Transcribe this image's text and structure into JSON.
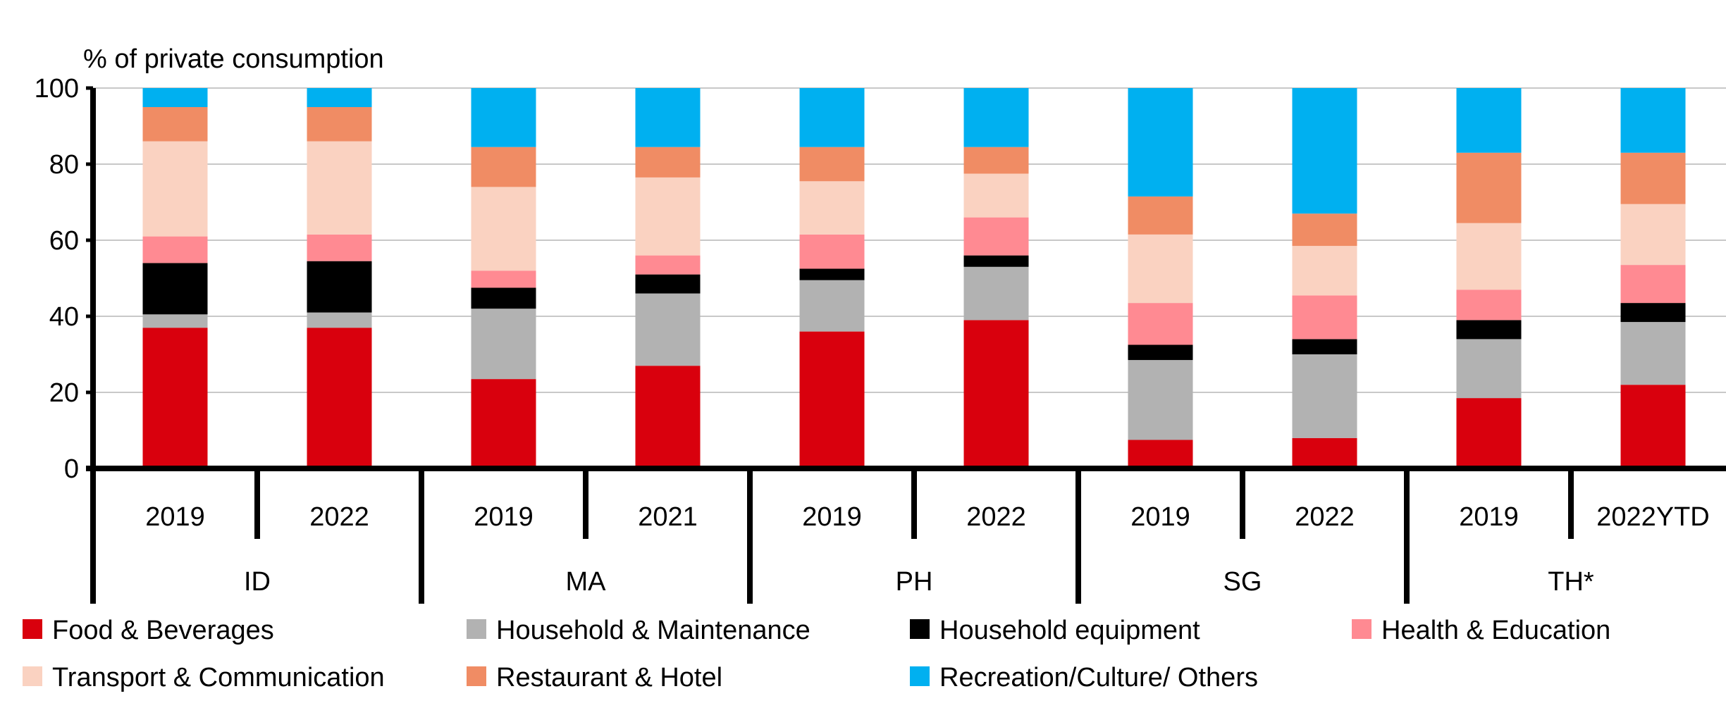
{
  "chart_data": {
    "type": "stacked-bar",
    "ylabel": "% of private consumption",
    "ylim": [
      0,
      100
    ],
    "yticks": [
      0,
      20,
      40,
      60,
      80,
      100
    ],
    "grid": true,
    "legend_position": "bottom",
    "groups": [
      {
        "name": "ID",
        "categories": [
          "2019",
          "2022"
        ]
      },
      {
        "name": "MA",
        "categories": [
          "2019",
          "2021"
        ]
      },
      {
        "name": "PH",
        "categories": [
          "2019",
          "2022"
        ]
      },
      {
        "name": "SG",
        "categories": [
          "2019",
          "2022"
        ]
      },
      {
        "name": "TH*",
        "categories": [
          "2019",
          "2022YTD"
        ]
      }
    ],
    "series": [
      {
        "name": "Food & Beverages",
        "color": "#d9000d",
        "values": [
          37,
          37,
          23.5,
          27,
          36,
          39,
          7.5,
          8,
          18.5,
          22
        ]
      },
      {
        "name": "Household & Maintenance",
        "color": "#b2b2b2",
        "values": [
          3.5,
          4,
          18.5,
          19,
          13.5,
          14,
          21,
          22,
          15.5,
          16.5
        ]
      },
      {
        "name": "Household equipment",
        "color": "#000000",
        "values": [
          13.5,
          13.5,
          5.5,
          5,
          3,
          3,
          4,
          4,
          5,
          5
        ]
      },
      {
        "name": "Health & Education",
        "color": "#ff8a92",
        "values": [
          7,
          7,
          4.5,
          5,
          9,
          10,
          11,
          11.5,
          8,
          10
        ]
      },
      {
        "name": "Transport & Communication",
        "color": "#fad2c1",
        "values": [
          25,
          24.5,
          22,
          20.5,
          14,
          11.5,
          18,
          13,
          17.5,
          16
        ]
      },
      {
        "name": "Restaurant & Hotel",
        "color": "#f08c64",
        "values": [
          9,
          9,
          10.5,
          8,
          9,
          7,
          10,
          8.5,
          18.5,
          13.5
        ]
      },
      {
        "name": "Recreation/Culture/ Others",
        "color": "#00b0f0",
        "values": [
          5,
          5,
          15.5,
          15.5,
          15.5,
          15.5,
          28.5,
          33,
          17,
          17
        ]
      }
    ]
  }
}
